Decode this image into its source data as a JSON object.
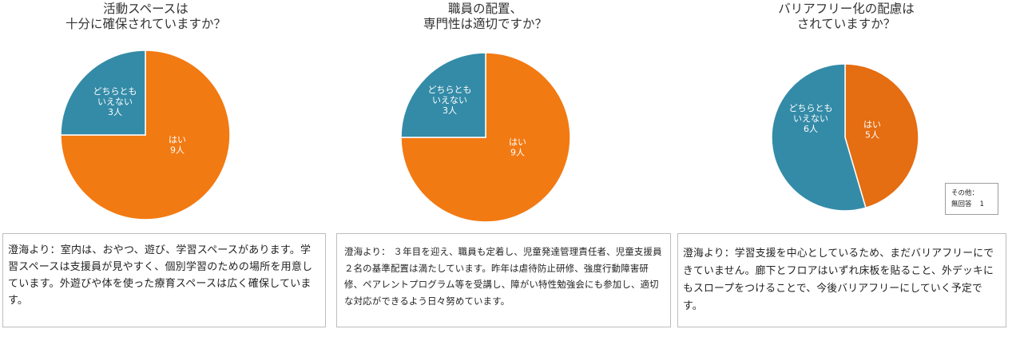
{
  "chart_data": [
    {
      "type": "pie",
      "title": [
        "活動スペースは",
        "十分に確保されていますか？"
      ],
      "slices": [
        {
          "label": [
            "はい",
            "9人"
          ],
          "value": 9,
          "color": "#F27A12"
        },
        {
          "label": [
            "どちらとも",
            "いえない",
            "3人"
          ],
          "value": 3,
          "color": "#348BA7"
        }
      ]
    },
    {
      "type": "pie",
      "title": [
        "職員の配置、",
        "専門性は適切ですか？"
      ],
      "slices": [
        {
          "label": [
            "はい",
            "9人"
          ],
          "value": 9,
          "color": "#F27A12"
        },
        {
          "label": [
            "どちらとも",
            "いえない",
            "3人"
          ],
          "value": 3,
          "color": "#348BA7"
        }
      ]
    },
    {
      "type": "pie",
      "title": [
        "バリアフリー化の配慮は",
        "されていますか？"
      ],
      "slices": [
        {
          "label": [
            "はい",
            "5人"
          ],
          "value": 5,
          "color": "#E56D12"
        },
        {
          "label": [
            "どちらとも",
            "いえない",
            "6人"
          ],
          "value": 6,
          "color": "#348BA7"
        }
      ]
    }
  ],
  "other_box": {
    "heading": "その他：",
    "label": "無回答",
    "count": "1"
  },
  "comments": [
    "澄海より：室内は、おやつ、遊び、学習スペースがあります。学習スペースは支援員が見やすく、個別学習のための場所を用意しています。外遊びや体を使った療育スペースは広く確保しています。",
    "澄海より： ３年目を迎え、職員も定着し、児童発達管理責任者、児童支援員２名の基準配置は満たしています。昨年は虐待防止研修、強度行動障害研修、ペアレントプログラム等を受講し、障がい特性勉強会にも参加し、適切な対応ができるよう日々努めています。",
    "澄海より：学習支援を中心としているため、まだバリアフリーにできていません。廊下とフロアはいずれ床板を貼ること、外デッキにもスロープをつけることで、今後バリアフリーにしていく予定です。"
  ]
}
